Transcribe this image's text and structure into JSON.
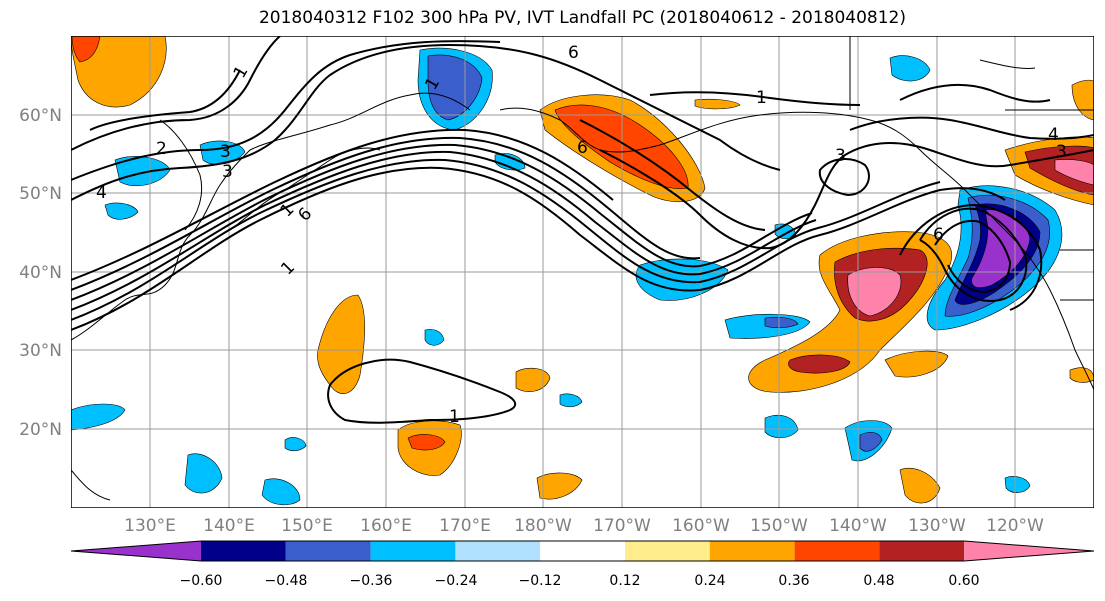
{
  "title": "2018040312 F102 300 hPa PV, IVT Landfall PC (2018040612 - 2018040812)",
  "lat_labels": [
    "60°N",
    "50°N",
    "40°N",
    "30°N",
    "20°N"
  ],
  "lon_labels": [
    "130°E",
    "140°E",
    "150°E",
    "160°E",
    "170°E",
    "180°W",
    "170°W",
    "160°W",
    "150°W",
    "140°W",
    "130°W",
    "120°W"
  ],
  "contour_labels": [
    "1",
    "6",
    "1",
    "2",
    "3",
    "3",
    "4",
    "1",
    "6",
    "1",
    "6",
    "3",
    "4",
    "3",
    "6",
    "1"
  ],
  "colorbar": {
    "ticks": [
      "−0.60",
      "−0.48",
      "−0.36",
      "−0.24",
      "−0.12",
      "0.12",
      "0.24",
      "0.36",
      "0.48",
      "0.60"
    ],
    "colors": [
      "#9932cc",
      "#00008b",
      "#3a5fcd",
      "#00bfff",
      "#b0e2ff",
      "#ffffff",
      "#ffec8b",
      "#ffa500",
      "#ff4500",
      "#b22222",
      "#ff82ab"
    ]
  }
}
